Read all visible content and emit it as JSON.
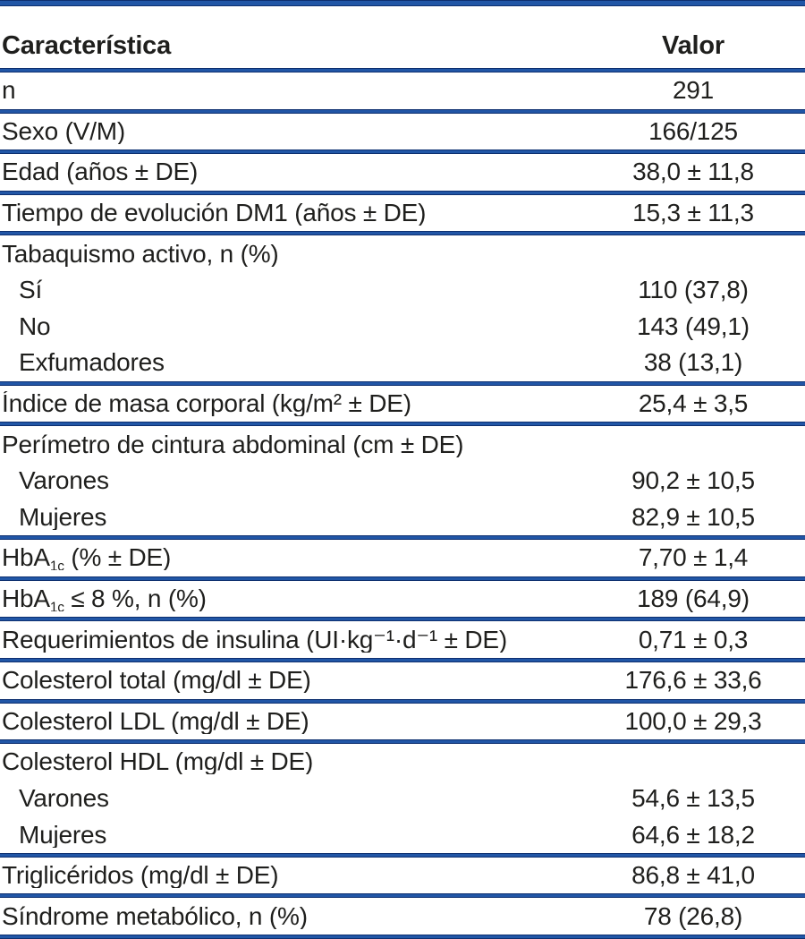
{
  "colors": {
    "line_blue": "#2156a6",
    "line_blue_dark": "#0e3070",
    "text": "#1f1f1d",
    "background": "#ffffff"
  },
  "table": {
    "columns": [
      {
        "label": "Característica"
      },
      {
        "label": "Valor"
      }
    ],
    "rows": [
      {
        "label": "n",
        "value": "291"
      },
      {
        "label": "Sexo (V/M)",
        "value": "166/125"
      },
      {
        "label": "Edad (años ± DE)",
        "value": "38,0 ± 11,8"
      },
      {
        "label": "Tiempo de evolución DM1 (años ± DE)",
        "value": "15,3 ± 11,3"
      },
      {
        "label": "Tabaquismo activo, n (%)",
        "value": "",
        "children": [
          {
            "label": "Sí",
            "value": "110 (37,8)"
          },
          {
            "label": "No",
            "value": "143 (49,1)"
          },
          {
            "label": "Exfumadores",
            "value": "38 (13,1)"
          }
        ]
      },
      {
        "label": "Índice de masa corporal (kg/m² ± DE)",
        "value": "25,4 ± 3,5"
      },
      {
        "label": "Perímetro de cintura abdominal (cm ± DE)",
        "value": "",
        "children": [
          {
            "label": "Varones",
            "value": "90,2 ± 10,5"
          },
          {
            "label": "Mujeres",
            "value": "82,9 ± 10,5"
          }
        ]
      },
      {
        "label": [
          {
            "t": "HbA"
          },
          {
            "t": "1c",
            "sub": true
          },
          {
            "t": " (% ± DE)"
          }
        ],
        "value": "7,70 ± 1,4"
      },
      {
        "label": [
          {
            "t": "HbA"
          },
          {
            "t": "1c",
            "sub": true
          },
          {
            "t": " ≤ 8 %, n (%)"
          }
        ],
        "value": "189 (64,9)"
      },
      {
        "label": "Requerimientos de insulina (UI·kg⁻¹·d⁻¹ ± DE)",
        "value": "0,71 ± 0,3"
      },
      {
        "label": "Colesterol total (mg/dl ± DE)",
        "value": "176,6 ± 33,6"
      },
      {
        "label": "Colesterol LDL (mg/dl ± DE)",
        "value": "100,0 ± 29,3"
      },
      {
        "label": "Colesterol HDL (mg/dl ± DE)",
        "value": "",
        "children": [
          {
            "label": "Varones",
            "value": "54,6 ± 13,5"
          },
          {
            "label": "Mujeres",
            "value": "64,6 ± 18,2"
          }
        ]
      },
      {
        "label": "Triglicéridos (mg/dl ± DE)",
        "value": "86,8 ± 41,0"
      },
      {
        "label": "Síndrome metabólico, n (%)",
        "value": "78 (26,8)"
      }
    ]
  }
}
